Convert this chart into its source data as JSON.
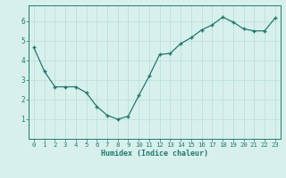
{
  "x": [
    0,
    1,
    2,
    3,
    4,
    5,
    6,
    7,
    8,
    9,
    10,
    11,
    12,
    13,
    14,
    15,
    16,
    17,
    18,
    19,
    20,
    21,
    22,
    23
  ],
  "y": [
    4.65,
    3.45,
    2.65,
    2.65,
    2.65,
    2.35,
    1.65,
    1.2,
    1.0,
    1.15,
    2.2,
    3.2,
    4.3,
    4.35,
    4.85,
    5.15,
    5.55,
    5.8,
    6.2,
    5.95,
    5.6,
    5.5,
    5.5,
    6.15
  ],
  "xlabel": "Humidex (Indice chaleur)",
  "ylim": [
    0,
    6.8
  ],
  "xlim": [
    -0.5,
    23.5
  ],
  "yticks": [
    1,
    2,
    3,
    4,
    5,
    6
  ],
  "xticks": [
    0,
    1,
    2,
    3,
    4,
    5,
    6,
    7,
    8,
    9,
    10,
    11,
    12,
    13,
    14,
    15,
    16,
    17,
    18,
    19,
    20,
    21,
    22,
    23
  ],
  "line_color": "#1f7a70",
  "marker_color": "#1f7a70",
  "bg_color": "#d8f0ec",
  "grid_color": "#b8ddd8",
  "font_color": "#1f7a70",
  "tick_fontsize": 5.2,
  "xlabel_fontsize": 6.0
}
